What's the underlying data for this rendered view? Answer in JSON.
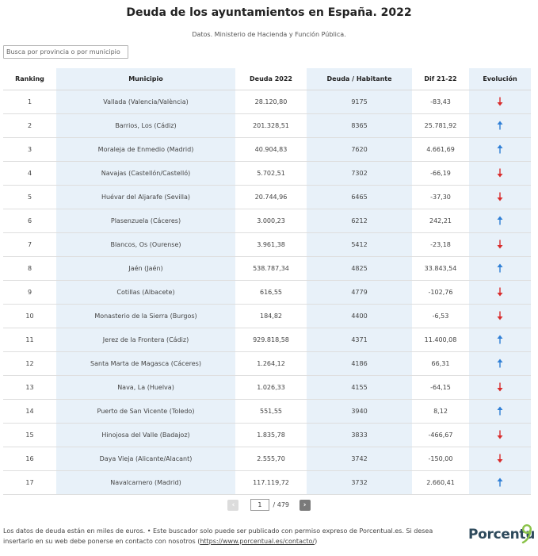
{
  "title": "Deuda de los ayuntamientos en España. 2022",
  "subtitle": "Datos. Ministerio de Hacienda y Función Pública.",
  "search": {
    "placeholder": "Busca por provincia o por municipio",
    "value": ""
  },
  "table": {
    "headers": {
      "ranking": "Ranking",
      "municipio": "Municipio",
      "deuda": "Deuda 2022",
      "habitante": "Deuda / Habitante",
      "dif": "Dif 21-22",
      "evolucion": "Evolución"
    },
    "rows": [
      {
        "ranking": "1",
        "municipio": "Vallada (Valencia/València)",
        "deuda": "28.120,80",
        "habitante": "9175",
        "dif": "-83,43",
        "trend": "down"
      },
      {
        "ranking": "2",
        "municipio": "Barrios, Los (Cádiz)",
        "deuda": "201.328,51",
        "habitante": "8365",
        "dif": "25.781,92",
        "trend": "up"
      },
      {
        "ranking": "3",
        "municipio": "Moraleja de Enmedio (Madrid)",
        "deuda": "40.904,83",
        "habitante": "7620",
        "dif": "4.661,69",
        "trend": "up"
      },
      {
        "ranking": "4",
        "municipio": "Navajas (Castellón/Castelló)",
        "deuda": "5.702,51",
        "habitante": "7302",
        "dif": "-66,19",
        "trend": "down"
      },
      {
        "ranking": "5",
        "municipio": "Huévar del Aljarafe (Sevilla)",
        "deuda": "20.744,96",
        "habitante": "6465",
        "dif": "-37,30",
        "trend": "down"
      },
      {
        "ranking": "6",
        "municipio": "Plasenzuela (Cáceres)",
        "deuda": "3.000,23",
        "habitante": "6212",
        "dif": "242,21",
        "trend": "up"
      },
      {
        "ranking": "7",
        "municipio": "Blancos, Os (Ourense)",
        "deuda": "3.961,38",
        "habitante": "5412",
        "dif": "-23,18",
        "trend": "down"
      },
      {
        "ranking": "8",
        "municipio": "Jaén (Jaén)",
        "deuda": "538.787,34",
        "habitante": "4825",
        "dif": "33.843,54",
        "trend": "up"
      },
      {
        "ranking": "9",
        "municipio": "Cotillas (Albacete)",
        "deuda": "616,55",
        "habitante": "4779",
        "dif": "-102,76",
        "trend": "down"
      },
      {
        "ranking": "10",
        "municipio": "Monasterio de la Sierra (Burgos)",
        "deuda": "184,82",
        "habitante": "4400",
        "dif": "-6,53",
        "trend": "down"
      },
      {
        "ranking": "11",
        "municipio": "Jerez de la Frontera (Cádiz)",
        "deuda": "929.818,58",
        "habitante": "4371",
        "dif": "11.400,08",
        "trend": "up"
      },
      {
        "ranking": "12",
        "municipio": "Santa Marta de Magasca (Cáceres)",
        "deuda": "1.264,12",
        "habitante": "4186",
        "dif": "66,31",
        "trend": "up"
      },
      {
        "ranking": "13",
        "municipio": "Nava, La (Huelva)",
        "deuda": "1.026,33",
        "habitante": "4155",
        "dif": "-64,15",
        "trend": "down"
      },
      {
        "ranking": "14",
        "municipio": "Puerto de San Vicente (Toledo)",
        "deuda": "551,55",
        "habitante": "3940",
        "dif": "8,12",
        "trend": "up"
      },
      {
        "ranking": "15",
        "municipio": "Hinojosa del Valle (Badajoz)",
        "deuda": "1.835,78",
        "habitante": "3833",
        "dif": "-466,67",
        "trend": "down"
      },
      {
        "ranking": "16",
        "municipio": "Daya Vieja (Alicante/Alacant)",
        "deuda": "2.555,70",
        "habitante": "3742",
        "dif": "-150,00",
        "trend": "down"
      },
      {
        "ranking": "17",
        "municipio": "Navalcarnero (Madrid)",
        "deuda": "117.119,72",
        "habitante": "3732",
        "dif": "2.660,41",
        "trend": "up"
      }
    ]
  },
  "pagination": {
    "prev_icon": "‹",
    "next_icon": "›",
    "current_page": "1",
    "total": "/ 479"
  },
  "footer": {
    "text": "Los datos de deuda están en miles de euros. • Este buscador solo puede ser publicado con permiso expreso de Porcentual.es. Si desea insertarlo en su web debe ponerse en contacto con nosotros (",
    "link": "https://www.porcentual.es/contacto/",
    "suffix": ")"
  },
  "logo": {
    "text": "Porcentu"
  },
  "colors": {
    "shade": "#e8f1f9",
    "arrow_up": "#2f7fd6",
    "arrow_down": "#d82c2c",
    "logo_text": "#2e4a5c",
    "logo_mark": "#8bc34a"
  },
  "icons": {
    "up": "arrow-up-icon",
    "down": "arrow-down-icon"
  }
}
